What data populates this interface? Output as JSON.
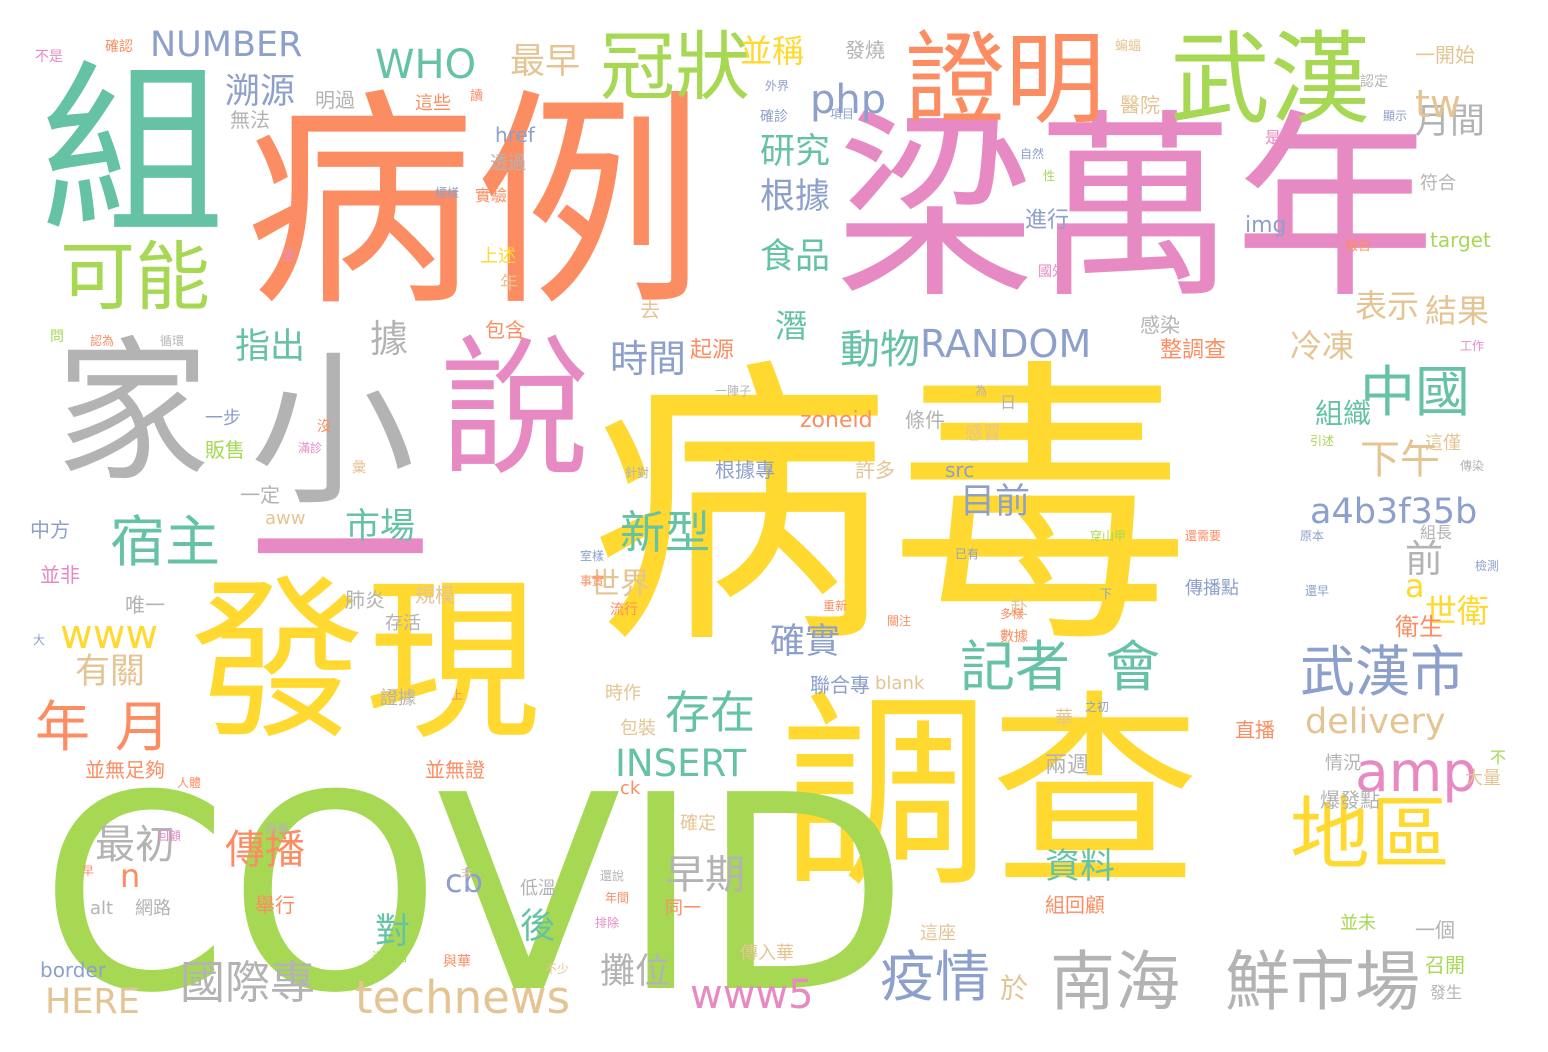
{
  "image": {
    "type": "word-cloud",
    "background": "#ffffff",
    "palette": {
      "yellow": "#ffd92f",
      "orange": "#fc8d62",
      "pink": "#e78ac3",
      "green": "#a6d854",
      "teal": "#66c2a5",
      "blue": "#8da0cb",
      "gray": "#b3b3b3",
      "tan": "#e5c494"
    }
  },
  "words": [
    {
      "text": "病毒",
      "color": "#ffd92f"
    },
    {
      "text": "病例",
      "color": "#fc8d62"
    },
    {
      "text": "梁萬年",
      "color": "#e78ac3"
    },
    {
      "text": "調查",
      "color": "#ffd92f"
    },
    {
      "text": "COVID",
      "color": "#a6d854"
    },
    {
      "text": "發現",
      "color": "#ffd92f"
    },
    {
      "text": "組",
      "color": "#66c2a5"
    },
    {
      "text": "家",
      "color": "#b3b3b3"
    },
    {
      "text": "小",
      "color": "#b3b3b3"
    },
    {
      "text": "說",
      "color": "#e78ac3"
    },
    {
      "text": "一",
      "color": "#e78ac3"
    },
    {
      "text": "證明",
      "color": "#fc8d62"
    },
    {
      "text": "武漢",
      "color": "#a6d854"
    },
    {
      "text": "可能",
      "color": "#a6d854"
    },
    {
      "text": "冠狀",
      "color": "#a6d854"
    },
    {
      "text": "地區",
      "color": "#ffd92f"
    },
    {
      "text": "南海",
      "color": "#b3b3b3"
    },
    {
      "text": "鮮市場",
      "color": "#b3b3b3"
    },
    {
      "text": "武漢市",
      "color": "#8da0cb"
    },
    {
      "text": "中國",
      "color": "#66c2a5"
    },
    {
      "text": "宿主",
      "color": "#66c2a5"
    },
    {
      "text": "年",
      "color": "#fc8d62"
    },
    {
      "text": "月",
      "color": "#fc8d62"
    },
    {
      "text": "疫情",
      "color": "#8da0cb"
    },
    {
      "text": "記者",
      "color": "#66c2a5"
    },
    {
      "text": "會",
      "color": "#66c2a5"
    },
    {
      "text": "amp",
      "color": "#e78ac3"
    },
    {
      "text": "存在",
      "color": "#66c2a5"
    },
    {
      "text": "新型",
      "color": "#66c2a5"
    },
    {
      "text": "technews",
      "color": "#e5c494"
    },
    {
      "text": "國際專",
      "color": "#b3b3b3"
    },
    {
      "text": "www5",
      "color": "#e78ac3"
    },
    {
      "text": "市場",
      "color": "#66c2a5"
    },
    {
      "text": "WHO",
      "color": "#66c2a5"
    },
    {
      "text": "NUMBER",
      "color": "#8da0cb"
    },
    {
      "text": "php",
      "color": "#8da0cb"
    },
    {
      "text": "RANDOM",
      "color": "#8da0cb"
    },
    {
      "text": "a4b3f35b",
      "color": "#8da0cb"
    },
    {
      "text": "delivery",
      "color": "#e5c494"
    },
    {
      "text": "INSERT",
      "color": "#66c2a5"
    },
    {
      "text": "www",
      "color": "#ffd92f"
    },
    {
      "text": "HERE",
      "color": "#e5c494"
    },
    {
      "text": "傳播",
      "color": "#fc8d62"
    },
    {
      "text": "最初",
      "color": "#b3b3b3"
    },
    {
      "text": "早期",
      "color": "#b3b3b3"
    },
    {
      "text": "動物",
      "color": "#66c2a5"
    },
    {
      "text": "時間",
      "color": "#8da0cb"
    },
    {
      "text": "溯源",
      "color": "#8da0cb"
    },
    {
      "text": "最早",
      "color": "#e5c494"
    },
    {
      "text": "並稱",
      "color": "#ffd92f"
    },
    {
      "text": "研究",
      "color": "#66c2a5"
    },
    {
      "text": "根據",
      "color": "#8da0cb"
    },
    {
      "text": "食品",
      "color": "#66c2a5"
    },
    {
      "text": "指出",
      "color": "#66c2a5"
    },
    {
      "text": "據",
      "color": "#b3b3b3"
    },
    {
      "text": "前",
      "color": "#b3b3b3"
    },
    {
      "text": "a",
      "color": "#ffd92f"
    },
    {
      "text": "下午",
      "color": "#e5c494"
    },
    {
      "text": "目前",
      "color": "#8da0cb"
    },
    {
      "text": "確實",
      "color": "#8da0cb"
    },
    {
      "text": "有關",
      "color": "#e5c494"
    },
    {
      "text": "月間",
      "color": "#b3b3b3"
    },
    {
      "text": "tw",
      "color": "#e5c494"
    },
    {
      "text": "表示",
      "color": "#e5c494"
    },
    {
      "text": "結果",
      "color": "#e5c494"
    },
    {
      "text": "冷凍",
      "color": "#e5c494"
    },
    {
      "text": "世衛",
      "color": "#ffd92f"
    },
    {
      "text": "世界",
      "color": "#e5c494"
    },
    {
      "text": "資料",
      "color": "#66c2a5"
    },
    {
      "text": "對",
      "color": "#66c2a5"
    },
    {
      "text": "後",
      "color": "#66c2a5"
    },
    {
      "text": "攤位",
      "color": "#b3b3b3"
    },
    {
      "text": "於",
      "color": "#e5c494"
    },
    {
      "text": "n",
      "color": "#fc8d62"
    },
    {
      "text": "cb",
      "color": "#8da0cb"
    },
    {
      "text": "潛",
      "color": "#66c2a5"
    },
    {
      "text": "組織",
      "color": "#66c2a5"
    },
    {
      "text": "衛生",
      "color": "#fc8d62"
    },
    {
      "text": "zoneid",
      "color": "#fc8d62"
    },
    {
      "text": "條件",
      "color": "#b3b3b3"
    },
    {
      "text": "img",
      "color": "#8da0cb"
    },
    {
      "text": "target",
      "color": "#a6d854"
    },
    {
      "text": "發燒",
      "color": "#b3b3b3"
    },
    {
      "text": "一開始",
      "color": "#e5c494"
    },
    {
      "text": "醫院",
      "color": "#e5c494"
    },
    {
      "text": "href",
      "color": "#8da0cb"
    },
    {
      "text": "明過",
      "color": "#b3b3b3"
    },
    {
      "text": "這些",
      "color": "#fc8d62"
    },
    {
      "text": "無法",
      "color": "#b3b3b3"
    },
    {
      "text": "透過",
      "color": "#b3b3b3"
    },
    {
      "text": "確認",
      "color": "#fc8d62"
    },
    {
      "text": "不是",
      "color": "#e78ac3"
    },
    {
      "text": "進行",
      "color": "#8da0cb"
    },
    {
      "text": "感染",
      "color": "#b3b3b3"
    },
    {
      "text": "整調查",
      "color": "#fc8d62"
    },
    {
      "text": "起源",
      "color": "#fc8d62"
    },
    {
      "text": "包含",
      "color": "#fc8d62"
    },
    {
      "text": "去",
      "color": "#e5c494"
    },
    {
      "text": "上述",
      "color": "#ffd92f"
    },
    {
      "text": "年",
      "color": "#e5c494"
    },
    {
      "text": "實驗",
      "color": "#fc8d62"
    },
    {
      "text": "販售",
      "color": "#a6d854"
    },
    {
      "text": "一步",
      "color": "#8da0cb"
    },
    {
      "text": "一定",
      "color": "#b3b3b3"
    },
    {
      "text": "中方",
      "color": "#8da0cb"
    },
    {
      "text": "並非",
      "color": "#e78ac3"
    },
    {
      "text": "唯一",
      "color": "#b3b3b3"
    },
    {
      "text": "肺炎",
      "color": "#b3b3b3"
    },
    {
      "text": "規模",
      "color": "#e5c494"
    },
    {
      "text": "存活",
      "color": "#b3b3b3"
    },
    {
      "text": "證據",
      "color": "#b3b3b3"
    },
    {
      "text": "並無足夠",
      "color": "#fc8d62"
    },
    {
      "text": "並無證",
      "color": "#fc8d62"
    },
    {
      "text": "確定",
      "color": "#e5c494"
    },
    {
      "text": "網路",
      "color": "#b3b3b3"
    },
    {
      "text": "alt",
      "color": "#b3b3b3"
    },
    {
      "text": "border",
      "color": "#8da0cb"
    },
    {
      "text": "舉行",
      "color": "#fc8d62"
    },
    {
      "text": "低溫",
      "color": "#b3b3b3"
    },
    {
      "text": "同一",
      "color": "#fc8d62"
    },
    {
      "text": "這座",
      "color": "#e5c494"
    },
    {
      "text": "傳入華",
      "color": "#e5c494"
    },
    {
      "text": "兩週",
      "color": "#b3b3b3"
    },
    {
      "text": "情況",
      "color": "#b3b3b3"
    },
    {
      "text": "爆發點",
      "color": "#b3b3b3"
    },
    {
      "text": "組回顧",
      "color": "#fc8d62"
    },
    {
      "text": "一個",
      "color": "#b3b3b3"
    },
    {
      "text": "召開",
      "color": "#a6d854"
    },
    {
      "text": "直播",
      "color": "#fc8d62"
    },
    {
      "text": "傳播點",
      "color": "#8da0cb"
    },
    {
      "text": "根據專",
      "color": "#8da0cb"
    },
    {
      "text": "許多",
      "color": "#e5c494"
    },
    {
      "text": "src",
      "color": "#8da0cb"
    },
    {
      "text": "感冒",
      "color": "#e5c494"
    },
    {
      "text": "aww",
      "color": "#e5c494"
    },
    {
      "text": "聯合專",
      "color": "#8da0cb"
    },
    {
      "text": "blank",
      "color": "#e5c494"
    },
    {
      "text": "時作",
      "color": "#e5c494"
    },
    {
      "text": "包裝",
      "color": "#e5c494"
    },
    {
      "text": "ck",
      "color": "#fc8d62"
    },
    {
      "text": "華",
      "color": "#e5c494"
    },
    {
      "text": "日",
      "color": "#b3b3b3"
    },
    {
      "text": "赴",
      "color": "#e5c494"
    },
    {
      "text": "符合",
      "color": "#b3b3b3"
    },
    {
      "text": "是否",
      "color": "#e78ac3"
    },
    {
      "text": "認定",
      "color": "#b3b3b3"
    },
    {
      "text": "報告",
      "color": "#fc8d62"
    },
    {
      "text": "國外",
      "color": "#e78ac3"
    },
    {
      "text": "工作",
      "color": "#e78ac3"
    },
    {
      "text": "這僅",
      "color": "#e5c494"
    },
    {
      "text": "傳染",
      "color": "#b3b3b3"
    },
    {
      "text": "引述",
      "color": "#a6d854"
    },
    {
      "text": "組長",
      "color": "#b3b3b3"
    },
    {
      "text": "檢測",
      "color": "#8da0cb"
    },
    {
      "text": "還早",
      "color": "#8da0cb"
    },
    {
      "text": "原本",
      "color": "#8da0cb"
    },
    {
      "text": "穿山甲",
      "color": "#a6d854"
    },
    {
      "text": "還需要",
      "color": "#fc8d62"
    },
    {
      "text": "下",
      "color": "#8da0cb"
    },
    {
      "text": "大量",
      "color": "#e5c494"
    },
    {
      "text": "不",
      "color": "#a6d854"
    },
    {
      "text": "發生",
      "color": "#b3b3b3"
    },
    {
      "text": "並未",
      "color": "#a6d854"
    },
    {
      "text": "流行",
      "color": "#fc8d62"
    },
    {
      "text": "重新",
      "color": "#fc8d62"
    },
    {
      "text": "關注",
      "color": "#fc8d62"
    },
    {
      "text": "數據",
      "color": "#fc8d62"
    },
    {
      "text": "多樣",
      "color": "#fc8d62"
    },
    {
      "text": "已有",
      "color": "#8da0cb"
    },
    {
      "text": "一陣子",
      "color": "#b3b3b3"
    },
    {
      "text": "為",
      "color": "#b3b3b3"
    },
    {
      "text": "外界",
      "color": "#8da0cb"
    },
    {
      "text": "確診",
      "color": "#8da0cb"
    },
    {
      "text": "項目",
      "color": "#8da0cb"
    },
    {
      "text": "顯示",
      "color": "#8da0cb"
    },
    {
      "text": "自然",
      "color": "#8da0cb"
    },
    {
      "text": "性",
      "color": "#a6d854"
    },
    {
      "text": "標樣",
      "color": "#8da0cb"
    },
    {
      "text": "蝙蝠",
      "color": "#e5c494"
    },
    {
      "text": "讀",
      "color": "#fc8d62"
    },
    {
      "text": "更",
      "color": "#e78ac3"
    },
    {
      "text": "認為",
      "color": "#fc8d62"
    },
    {
      "text": "循環",
      "color": "#b3b3b3"
    },
    {
      "text": "問",
      "color": "#a6d854"
    },
    {
      "text": "沒",
      "color": "#fc8d62"
    },
    {
      "text": "滿診",
      "color": "#e78ac3"
    },
    {
      "text": "彙",
      "color": "#e5c494"
    },
    {
      "text": "針對",
      "color": "#b3b3b3"
    },
    {
      "text": "室樣",
      "color": "#8da0cb"
    },
    {
      "text": "事實",
      "color": "#fc8d62"
    },
    {
      "text": "上",
      "color": "#fc8d62"
    },
    {
      "text": "之初",
      "color": "#8da0cb"
    },
    {
      "text": "人體",
      "color": "#fc8d62"
    },
    {
      "text": "而華",
      "color": "#b3b3b3"
    },
    {
      "text": "回顧",
      "color": "#e78ac3"
    },
    {
      "text": "末",
      "color": "#e5c494"
    },
    {
      "text": "還說",
      "color": "#b3b3b3"
    },
    {
      "text": "年間",
      "color": "#fc8d62"
    },
    {
      "text": "排除",
      "color": "#e78ac3"
    },
    {
      "text": "湖北省",
      "color": "#a6d854"
    },
    {
      "text": "與華",
      "color": "#fc8d62"
    },
    {
      "text": "不少",
      "color": "#e5c494"
    },
    {
      "text": "早",
      "color": "#fc8d62"
    },
    {
      "text": "大",
      "color": "#8da0cb"
    }
  ]
}
